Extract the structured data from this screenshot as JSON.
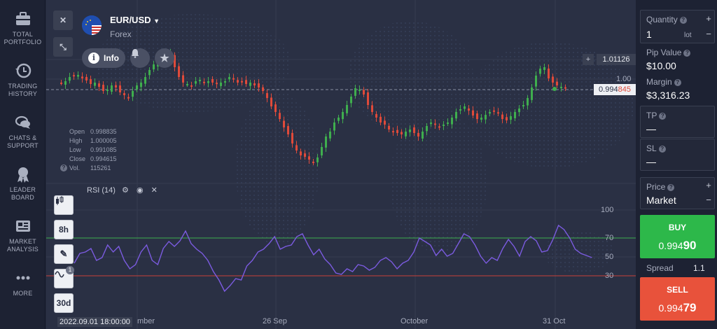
{
  "sidebar": {
    "items": [
      {
        "label1": "TOTAL",
        "label2": "PORTFOLIO",
        "icon": "briefcase-icon"
      },
      {
        "label1": "TRADING",
        "label2": "HISTORY",
        "icon": "history-icon"
      },
      {
        "label1": "CHATS &",
        "label2": "SUPPORT",
        "icon": "chat-icon"
      },
      {
        "label1": "LEADER",
        "label2": "BOARD",
        "icon": "medal-icon"
      },
      {
        "label1": "MARKET",
        "label2": "ANALYSIS",
        "icon": "news-icon"
      },
      {
        "label1": "MORE",
        "label2": "",
        "icon": "dots-icon"
      }
    ]
  },
  "asset": {
    "name": "EUR/USD",
    "category": "Forex"
  },
  "toolbar": {
    "close_icon": "✕",
    "collapse_icon": "⤡",
    "info_label": "Info",
    "candles_label": "8h",
    "period_label": "30d",
    "indicator_badge": "1"
  },
  "prices": {
    "level_high": "1.01126",
    "level_1": "1.00",
    "current_main": "0.994",
    "current_tail": "845"
  },
  "ohlc": {
    "open_label": "Open",
    "open": "0.998835",
    "high_label": "High",
    "high": "1.000005",
    "low_label": "Low",
    "low": "0.991085",
    "close_label": "Close",
    "close": "0.994615",
    "vol_label": "Vol.",
    "vol": "115261"
  },
  "rsi": {
    "label": "RSI (14)",
    "levels": [
      "100",
      "70",
      "50",
      "30"
    ]
  },
  "x_axis": {
    "start": "2022.09.01 18:00:00",
    "start_suffix": "mber",
    "labels": [
      "26 Sep",
      "October",
      "31 Oct"
    ]
  },
  "panel": {
    "quantity_label": "Quantity",
    "quantity_value": "1",
    "quantity_unit": "lot",
    "pip_label": "Pip Value",
    "pip_value": "$10.00",
    "margin_label": "Margin",
    "margin_value": "$3,316.23",
    "tp_label": "TP",
    "tp_value": "—",
    "sl_label": "SL",
    "sl_value": "—",
    "price_label": "Price",
    "price_value": "Market",
    "buy_label": "BUY",
    "buy_price_main": "0.994",
    "buy_price_tail": "90",
    "spread_label": "Spread",
    "spread_value": "1.1",
    "sell_label": "SELL",
    "sell_price_main": "0.994",
    "sell_price_tail": "79"
  },
  "colors": {
    "up": "#3fae4e",
    "down": "#e04a3a",
    "buy": "#2db84a",
    "sell": "#e8523b",
    "rsi_line": "#7b5be0",
    "accent": "#2f7de1"
  }
}
